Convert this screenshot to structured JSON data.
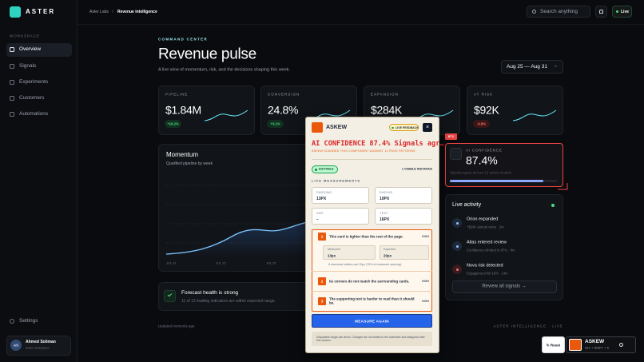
{
  "sidebar": {
    "brand": "ASTER",
    "section": "WORKSPACE",
    "nav": [
      "Overview",
      "Signals",
      "Experiments",
      "Customers",
      "Automations"
    ],
    "settings": "Settings",
    "user": {
      "initials": "AS",
      "name": "Ahmed Soliman",
      "workspace": "Aster workspace"
    }
  },
  "topbar": {
    "breadcrumb": [
      "Aster Labs",
      "Revenue intelligence"
    ],
    "separator": "/",
    "search": "Search anything",
    "live": "Live"
  },
  "header": {
    "eyebrow": "COMMAND CENTER",
    "title": "Revenue pulse",
    "subtitle": "A live view of momentum, risk, and the decisions shaping this week.",
    "date_range": "Aug 25 — Aug 31",
    "date_caret": "⌄"
  },
  "kpis": [
    {
      "label": "PIPELINE",
      "value": "$1.84M",
      "change": "+18.2%"
    },
    {
      "label": "CONVERSION",
      "value": "24.8%",
      "change": "+3.1%"
    },
    {
      "label": "EXPANSION",
      "value": "$284K"
    },
    {
      "label": "AT RISK",
      "value": "$92K",
      "change": "-6.8%"
    }
  ],
  "momentum": {
    "title": "Momentum",
    "subtitle": "Qualified pipeline by week",
    "x_labels": [
      "JUL 01",
      "JUL 15",
      "JUL 29"
    ]
  },
  "forecast": {
    "title": "Forecast health is strong",
    "text": "11 of 12 leading indicators are within expected range."
  },
  "footer": {
    "updated": "Updated moments ago",
    "brand": "ASTER INTELLIGENCE · LIVE"
  },
  "confidence": {
    "tag": "BTV",
    "label": "AI CONFIDENCE",
    "value": "87.4%",
    "note": "Signals agree across 12 active models"
  },
  "activity": {
    "title": "Live activity",
    "items": [
      {
        "title": "Orion expanded",
        "meta": "+$24K annual value · 2m"
      },
      {
        "title": "Atlas entered review",
        "meta": "Confidence climbed to 87% · 8m"
      },
      {
        "title": "Nova risk detected",
        "meta": "Engagement fell 18% · 14m"
      }
    ],
    "button": "Review all signals →"
  },
  "askew_panel": {
    "brand": "ASKEW",
    "badge": "LIVE FEEDBACK",
    "close": "×",
    "title": "AI CONFIDENCE 87.4% Signals agr…",
    "subtitle": "ASKEW SCANNED THIS COMPONENT AGAINST 12 PAGE PATTERNS",
    "status": "EDITABLE",
    "instances": "1 VISIBLE INSTANCE",
    "section": "LIVE MEASUREMENTS",
    "measurements": [
      {
        "label": "PADDING",
        "value": "13PX"
      },
      {
        "label": "RADIUS",
        "value": "10PX"
      },
      {
        "label": "GAP",
        "value": "–"
      },
      {
        "label": "TEXT",
        "value": "16PX"
      }
    ],
    "issues": [
      {
        "number": 1,
        "text": "This card is tighter than the rest of the page.",
        "severity": "HIGH",
        "measured_label": "Measured",
        "measured": "13px",
        "expected_label": "Expected",
        "expected": "20px",
        "note": "8 structural outliers use 20px (75% of measured spacing)."
      },
      {
        "number": 2,
        "text": "Its corners do not match the surrounding cards.",
        "severity": "HIGH"
      },
      {
        "number": 3,
        "text": "The supporting text is harder to read than it should be.",
        "severity": "HIGH"
      }
    ],
    "action": "MEASURE AGAIN",
    "disclaimer": "Disposable single-use demo. Changes are not written to the codebase and disappear after this session."
  },
  "dock": {
    "reset": "↻ Reset",
    "name": "ASKEW",
    "shortcut": "ALT + SHIFT + A"
  }
}
